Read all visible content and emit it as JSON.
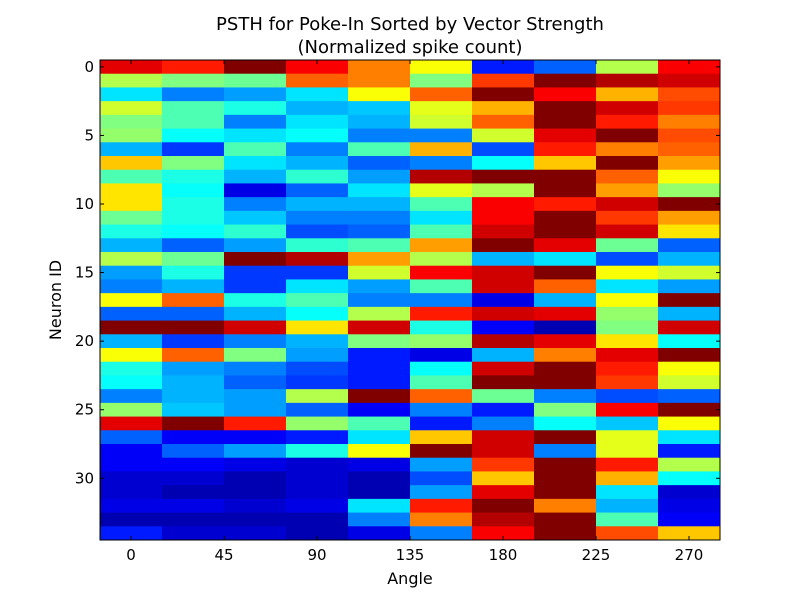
{
  "chart_data": {
    "type": "heatmap",
    "title": "PSTH for Poke-In Sorted by Vector Strength",
    "subtitle": "(Normalized spike count)",
    "xlabel": "Angle",
    "ylabel": "Neuron ID",
    "x_ticks": [
      {
        "value": 0,
        "label": "0"
      },
      {
        "value": 45,
        "label": "45"
      },
      {
        "value": 90,
        "label": "90"
      },
      {
        "value": 135,
        "label": "135"
      },
      {
        "value": 180,
        "label": "180"
      },
      {
        "value": 225,
        "label": "225"
      },
      {
        "value": 270,
        "label": "270"
      }
    ],
    "y_ticks": [
      {
        "value": 0,
        "label": "0"
      },
      {
        "value": 5,
        "label": "5"
      },
      {
        "value": 10,
        "label": "10"
      },
      {
        "value": 15,
        "label": "15"
      },
      {
        "value": 20,
        "label": "20"
      },
      {
        "value": 25,
        "label": "25"
      },
      {
        "value": 30,
        "label": "30"
      }
    ],
    "columns": [
      0,
      30,
      60,
      90,
      120,
      150,
      180,
      210,
      240,
      270
    ],
    "xlim": [
      -15,
      285
    ],
    "ylim": [
      34.5,
      -0.5
    ],
    "colormap": "jet",
    "vmin": 0,
    "vmax": 1,
    "values": [
      [
        0.9,
        0.85,
        1.0,
        0.88,
        0.75,
        0.62,
        0.15,
        0.22,
        0.55,
        0.88
      ],
      [
        0.55,
        0.5,
        0.48,
        0.78,
        0.75,
        0.5,
        0.82,
        1.0,
        0.95,
        0.92
      ],
      [
        0.35,
        0.25,
        0.28,
        0.35,
        0.62,
        0.78,
        1.0,
        0.88,
        0.7,
        0.8
      ],
      [
        0.58,
        0.45,
        0.4,
        0.3,
        0.32,
        0.6,
        0.7,
        1.0,
        0.92,
        0.82
      ],
      [
        0.5,
        0.45,
        0.25,
        0.35,
        0.3,
        0.58,
        0.78,
        1.0,
        0.85,
        0.75
      ],
      [
        0.52,
        0.38,
        0.35,
        0.38,
        0.25,
        0.25,
        0.58,
        0.9,
        1.0,
        0.8
      ],
      [
        0.3,
        0.18,
        0.45,
        0.25,
        0.45,
        0.7,
        0.2,
        0.85,
        0.75,
        0.78
      ],
      [
        0.68,
        0.5,
        0.35,
        0.3,
        0.22,
        0.25,
        0.38,
        0.68,
        1.0,
        0.72
      ],
      [
        0.45,
        0.4,
        0.3,
        0.42,
        0.28,
        0.95,
        1.0,
        1.0,
        0.78,
        0.62
      ],
      [
        0.65,
        0.38,
        0.1,
        0.22,
        0.35,
        0.6,
        0.55,
        1.0,
        0.72,
        0.52
      ],
      [
        0.65,
        0.4,
        0.25,
        0.3,
        0.3,
        0.45,
        0.88,
        0.85,
        0.92,
        1.0
      ],
      [
        0.48,
        0.4,
        0.32,
        0.25,
        0.25,
        0.35,
        0.88,
        1.0,
        0.82,
        0.72
      ],
      [
        0.4,
        0.38,
        0.42,
        0.2,
        0.22,
        0.45,
        0.92,
        1.0,
        0.92,
        0.65
      ],
      [
        0.3,
        0.22,
        0.28,
        0.42,
        0.45,
        0.72,
        1.0,
        0.9,
        0.48,
        0.22
      ],
      [
        0.55,
        0.48,
        1.0,
        0.95,
        0.72,
        0.55,
        0.3,
        0.35,
        0.2,
        0.3
      ],
      [
        0.28,
        0.4,
        0.18,
        0.18,
        0.58,
        0.88,
        0.92,
        1.0,
        0.62,
        0.58
      ],
      [
        0.25,
        0.3,
        0.18,
        0.35,
        0.28,
        0.45,
        0.92,
        0.78,
        0.35,
        0.28
      ],
      [
        0.62,
        0.78,
        0.4,
        0.45,
        0.25,
        0.25,
        0.1,
        0.3,
        0.62,
        1.0
      ],
      [
        0.22,
        0.22,
        0.3,
        0.38,
        0.55,
        0.85,
        0.92,
        0.9,
        0.52,
        0.3
      ],
      [
        1.0,
        1.0,
        0.92,
        0.65,
        0.92,
        0.4,
        0.12,
        0.05,
        0.5,
        0.92
      ],
      [
        0.3,
        0.18,
        0.25,
        0.3,
        0.5,
        0.52,
        0.95,
        0.9,
        0.65,
        0.38
      ],
      [
        0.62,
        0.78,
        0.5,
        0.28,
        0.15,
        0.1,
        0.3,
        0.75,
        0.9,
        1.0
      ],
      [
        0.4,
        0.28,
        0.25,
        0.2,
        0.15,
        0.38,
        0.92,
        1.0,
        0.85,
        0.62
      ],
      [
        0.38,
        0.3,
        0.22,
        0.18,
        0.15,
        0.45,
        1.0,
        1.0,
        0.82,
        0.58
      ],
      [
        0.25,
        0.3,
        0.28,
        0.55,
        1.0,
        0.78,
        0.48,
        0.25,
        0.2,
        0.22
      ],
      [
        0.52,
        0.32,
        0.28,
        0.22,
        0.12,
        0.25,
        0.15,
        0.5,
        0.88,
        1.0
      ],
      [
        0.9,
        1.0,
        0.85,
        0.52,
        0.45,
        0.15,
        0.25,
        0.38,
        0.32,
        0.62
      ],
      [
        0.22,
        0.12,
        0.12,
        0.15,
        0.35,
        0.68,
        0.92,
        1.0,
        0.6,
        0.35
      ],
      [
        0.12,
        0.22,
        0.28,
        0.4,
        0.62,
        1.0,
        0.92,
        0.25,
        0.6,
        0.15
      ],
      [
        0.12,
        0.12,
        0.1,
        0.08,
        0.1,
        0.28,
        0.82,
        1.0,
        0.85,
        0.55
      ],
      [
        0.08,
        0.08,
        0.05,
        0.08,
        0.05,
        0.2,
        0.68,
        1.0,
        0.7,
        0.38
      ],
      [
        0.08,
        0.05,
        0.05,
        0.08,
        0.05,
        0.28,
        0.9,
        1.0,
        0.35,
        0.08
      ],
      [
        0.1,
        0.1,
        0.08,
        0.1,
        0.35,
        0.85,
        1.0,
        0.75,
        0.3,
        0.1
      ],
      [
        0.05,
        0.05,
        0.05,
        0.05,
        0.25,
        0.75,
        0.95,
        1.0,
        0.45,
        0.12
      ],
      [
        0.15,
        0.08,
        0.08,
        0.05,
        0.1,
        0.25,
        0.88,
        1.0,
        0.8,
        0.68
      ]
    ]
  }
}
